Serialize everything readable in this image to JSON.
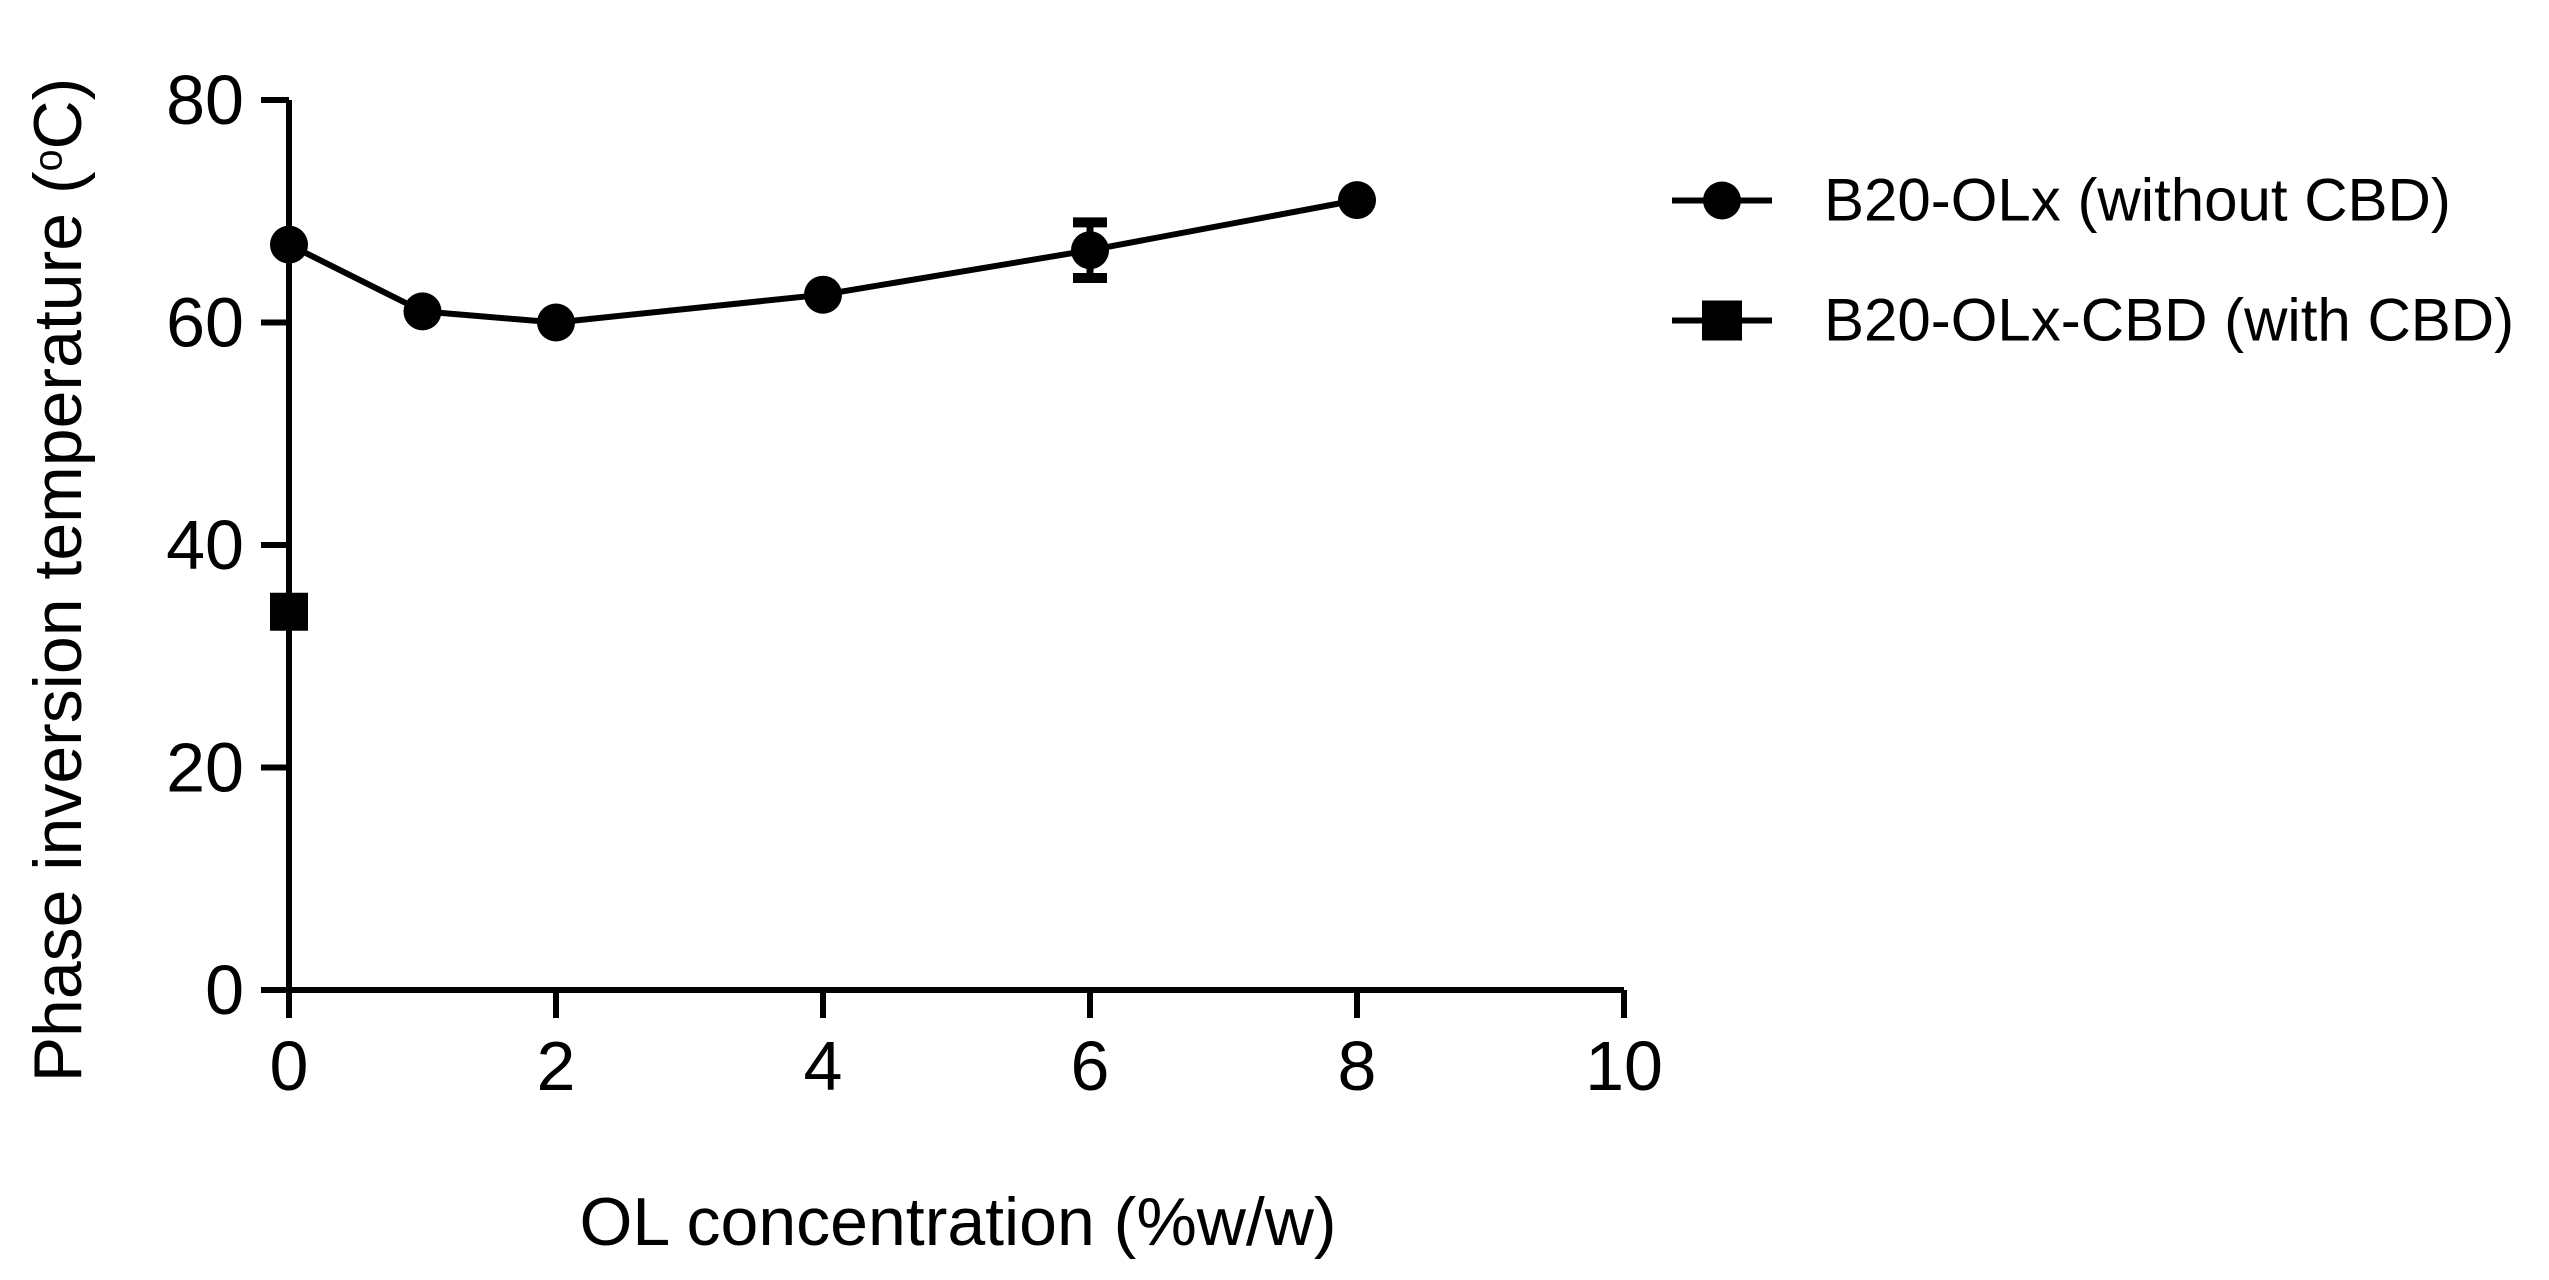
{
  "figure": {
    "background": "#ffffff",
    "foreground": "#000000"
  },
  "chart_data": {
    "type": "line",
    "title": "",
    "xlabel": "OL concentration (%w/w)",
    "ylabel": "Phase inversion temperature (°C)",
    "ylabel_parts": {
      "pre": "Phase inversion temperature (",
      "sup": "o",
      "post": "C)"
    },
    "xlim": [
      0,
      10
    ],
    "ylim": [
      0,
      80
    ],
    "x_ticks": [
      0,
      2,
      4,
      6,
      8,
      10
    ],
    "y_ticks": [
      0,
      20,
      40,
      60,
      80
    ],
    "grid": false,
    "legend_position": "top-right",
    "series": [
      {
        "name": "B20-OLx (without CBD)",
        "marker": "circle",
        "color": "#000000",
        "points": [
          {
            "x": 0,
            "y": 67
          },
          {
            "x": 1,
            "y": 61
          },
          {
            "x": 2,
            "y": 60
          },
          {
            "x": 4,
            "y": 62.5
          },
          {
            "x": 6,
            "y": 66.5,
            "err": 2.5
          },
          {
            "x": 8,
            "y": 71
          }
        ]
      },
      {
        "name": "B20-OLx-CBD (with CBD)",
        "marker": "square",
        "color": "#000000",
        "points": [
          {
            "x": 0,
            "y": 34
          }
        ]
      }
    ]
  }
}
